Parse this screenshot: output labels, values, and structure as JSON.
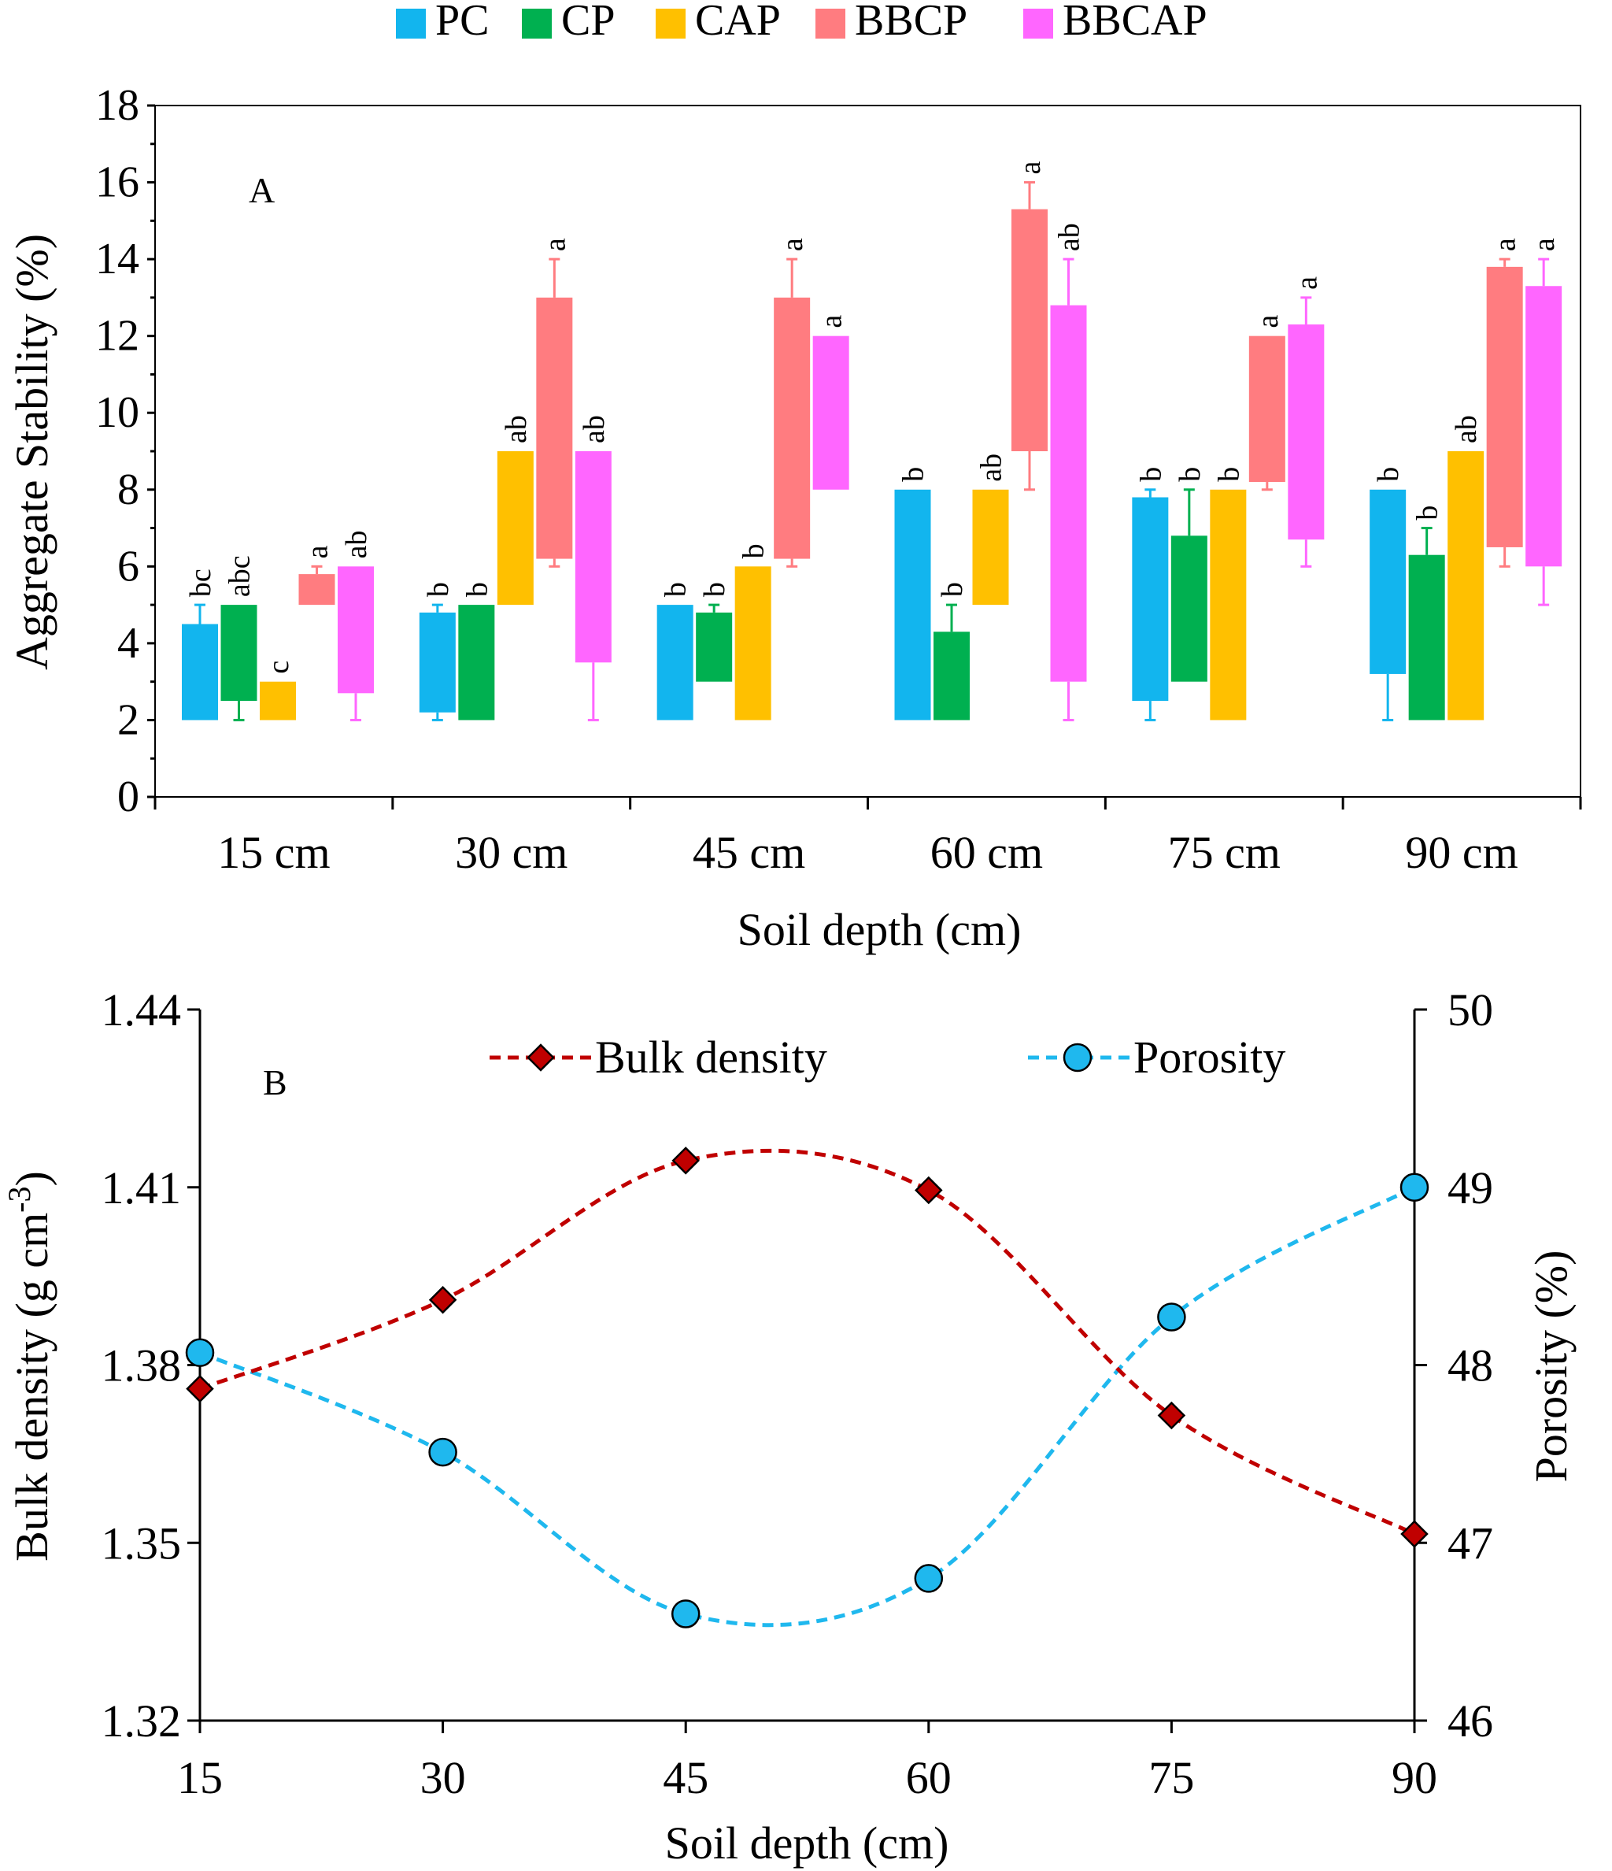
{
  "colors": {
    "PC": "#12B5EE",
    "CP": "#00B050",
    "CAP": "#FFC000",
    "BBCP": "#FF7C80",
    "BBCAP": "#FF66FF",
    "bulk_density": "#C00000",
    "porosity": "#1FB8EE",
    "axis": "#000000"
  },
  "chart_data": [
    {
      "type": "bar",
      "panel_label": "A",
      "xlabel": "Soil depth (cm)",
      "ylabel": "Aggregate Stability (%)",
      "ylim": [
        0,
        18
      ],
      "yticks": [
        "0",
        "2",
        "4",
        "6",
        "8",
        "10",
        "12",
        "14",
        "16",
        "18"
      ],
      "categories": [
        "15 cm",
        "30 cm",
        "45 cm",
        "60 cm",
        "75 cm",
        "90 cm"
      ],
      "legend": [
        "PC",
        "CP",
        "CAP",
        "BBCP",
        "BBCAP"
      ],
      "legend_position": "top-center",
      "series": [
        {
          "name": "PC",
          "lows": [
            2,
            2.2,
            2,
            2,
            2.5,
            3.2
          ],
          "highs": [
            4.5,
            4.8,
            5,
            8,
            7.8,
            8
          ],
          "whisker_low": [
            null,
            2,
            null,
            null,
            2,
            2
          ],
          "whisker_high": [
            5,
            5,
            null,
            null,
            8,
            null
          ],
          "letters": [
            "bc",
            "b",
            "b",
            "b",
            "b",
            "b"
          ]
        },
        {
          "name": "CP",
          "lows": [
            2.5,
            2,
            3,
            2,
            3,
            2
          ],
          "highs": [
            5,
            5,
            4.8,
            4.3,
            6.8,
            6.3
          ],
          "whisker_low": [
            2,
            null,
            null,
            null,
            null,
            null
          ],
          "whisker_high": [
            null,
            null,
            5,
            5,
            8,
            7
          ],
          "letters": [
            "abc",
            "b",
            "b",
            "b",
            "b",
            "b"
          ]
        },
        {
          "name": "CAP",
          "lows": [
            2,
            5,
            2,
            5,
            2,
            2
          ],
          "highs": [
            3,
            9,
            6,
            8,
            8,
            9
          ],
          "whisker_low": [
            null,
            null,
            null,
            null,
            null,
            null
          ],
          "whisker_high": [
            null,
            null,
            null,
            null,
            null,
            null
          ],
          "letters": [
            "c",
            "ab",
            "b",
            "ab",
            "b",
            "ab"
          ]
        },
        {
          "name": "BBCP",
          "lows": [
            5,
            6.2,
            6.2,
            9,
            8.2,
            6.5
          ],
          "highs": [
            5.8,
            13,
            13,
            15.3,
            12,
            13.8
          ],
          "whisker_low": [
            null,
            6,
            6,
            8,
            8,
            6
          ],
          "whisker_high": [
            6,
            14,
            14,
            16,
            null,
            14
          ],
          "letters": [
            "a",
            "a",
            "a",
            "a",
            "a",
            "a"
          ]
        },
        {
          "name": "BBCAP",
          "lows": [
            2.7,
            3.5,
            8,
            3,
            6.7,
            6
          ],
          "highs": [
            6,
            9,
            12,
            12.8,
            12.3,
            13.3
          ],
          "whisker_low": [
            2,
            2,
            null,
            2,
            6,
            5
          ],
          "whisker_high": [
            null,
            null,
            null,
            14,
            13,
            14
          ],
          "letters": [
            "ab",
            "ab",
            "a",
            "ab",
            "a",
            "a"
          ]
        }
      ]
    },
    {
      "type": "line",
      "panel_label": "B",
      "xlabel": "Soil depth (cm)",
      "ylabel_left": "Bulk density (g cm-3)",
      "ylabel_right": "Porosity (%)",
      "x": [
        15,
        30,
        45,
        60,
        75,
        90
      ],
      "xticks": [
        "15",
        "30",
        "45",
        "60",
        "75",
        "90"
      ],
      "ylim_left": [
        1.32,
        1.44
      ],
      "ylim_right": [
        46,
        50
      ],
      "yticks_left": [
        "1.32",
        "1.35",
        "1.38",
        "1.41",
        "1.44"
      ],
      "yticks_right": [
        "46",
        "47",
        "48",
        "49",
        "50"
      ],
      "legend_position": "top",
      "series": [
        {
          "name": "Bulk density",
          "axis": "left",
          "marker": "diamond",
          "values": [
            1.376,
            1.391,
            1.4145,
            1.4095,
            1.3715,
            1.3515
          ]
        },
        {
          "name": "Porosity",
          "axis": "right",
          "marker": "circle",
          "values": [
            48.07,
            47.51,
            46.6,
            46.8,
            48.27,
            49.0
          ]
        }
      ]
    }
  ]
}
